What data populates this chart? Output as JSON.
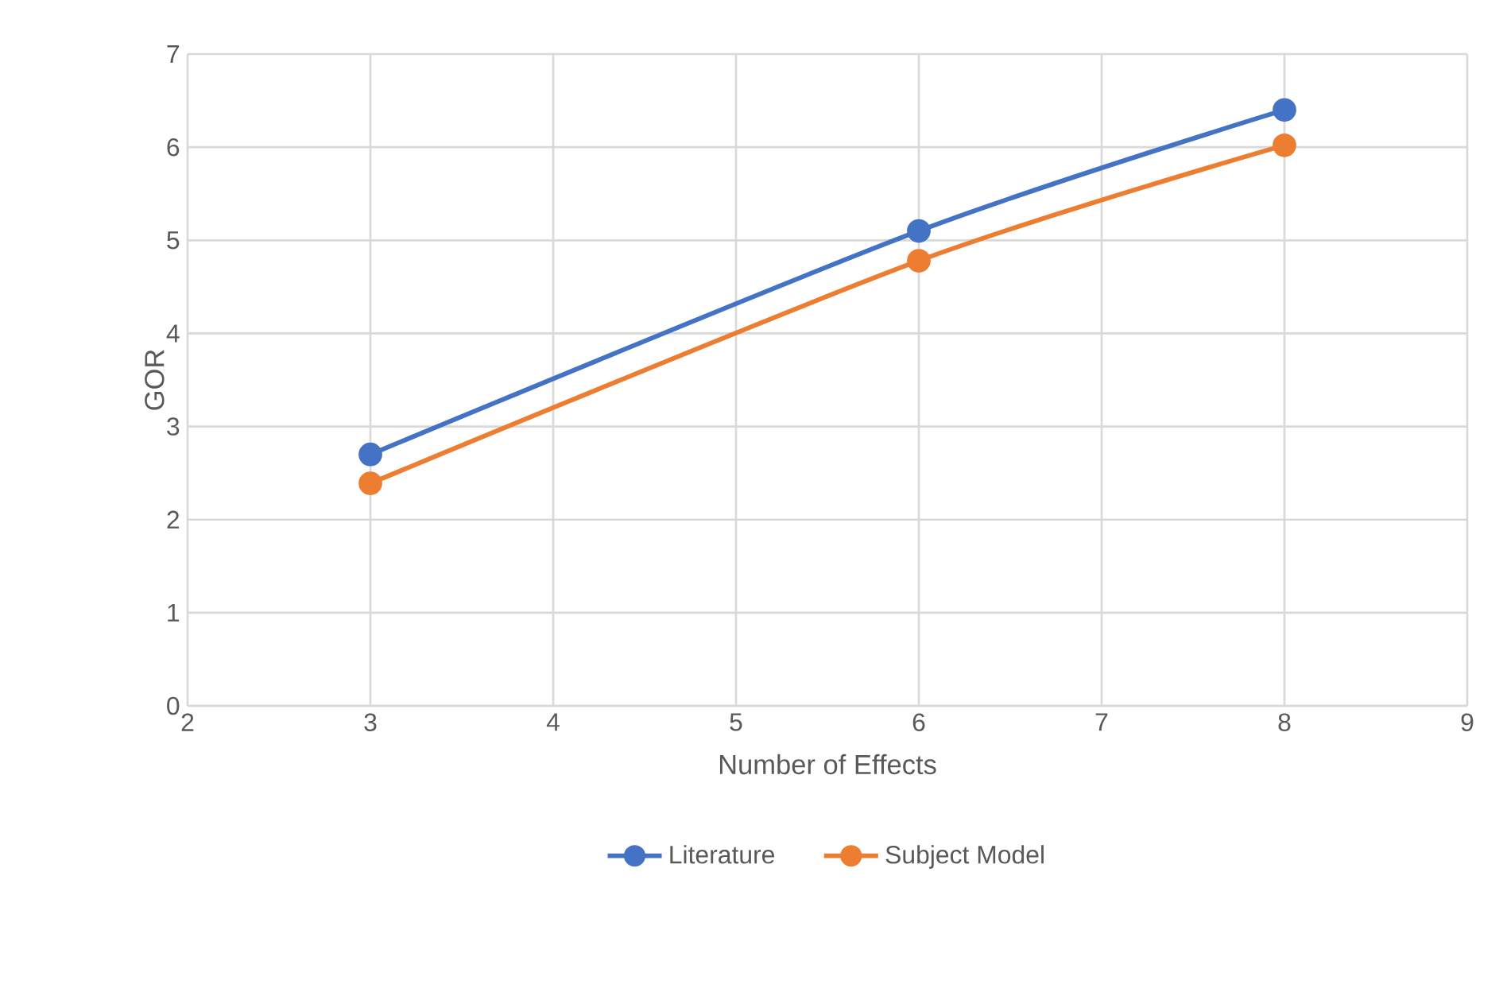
{
  "chart_data": {
    "type": "line",
    "xlabel": "Number of Effects",
    "ylabel": "GOR",
    "series": [
      {
        "name": "Literature",
        "color": "#4472c4",
        "x": [
          3,
          6,
          8
        ],
        "values": [
          2.7,
          5.1,
          6.4
        ]
      },
      {
        "name": "Subject Model",
        "color": "#ed7d31",
        "x": [
          3,
          6,
          8
        ],
        "values": [
          2.39,
          4.78,
          6.02
        ]
      }
    ],
    "xlim": [
      2,
      9
    ],
    "xticks": [
      2,
      3,
      4,
      5,
      6,
      7,
      8,
      9
    ],
    "ylim": [
      0,
      7
    ],
    "yticks": [
      0,
      1,
      2,
      3,
      4,
      5,
      6,
      7
    ],
    "grid": true,
    "legend": "bottom",
    "marker": "circle",
    "line_style": "solid"
  }
}
